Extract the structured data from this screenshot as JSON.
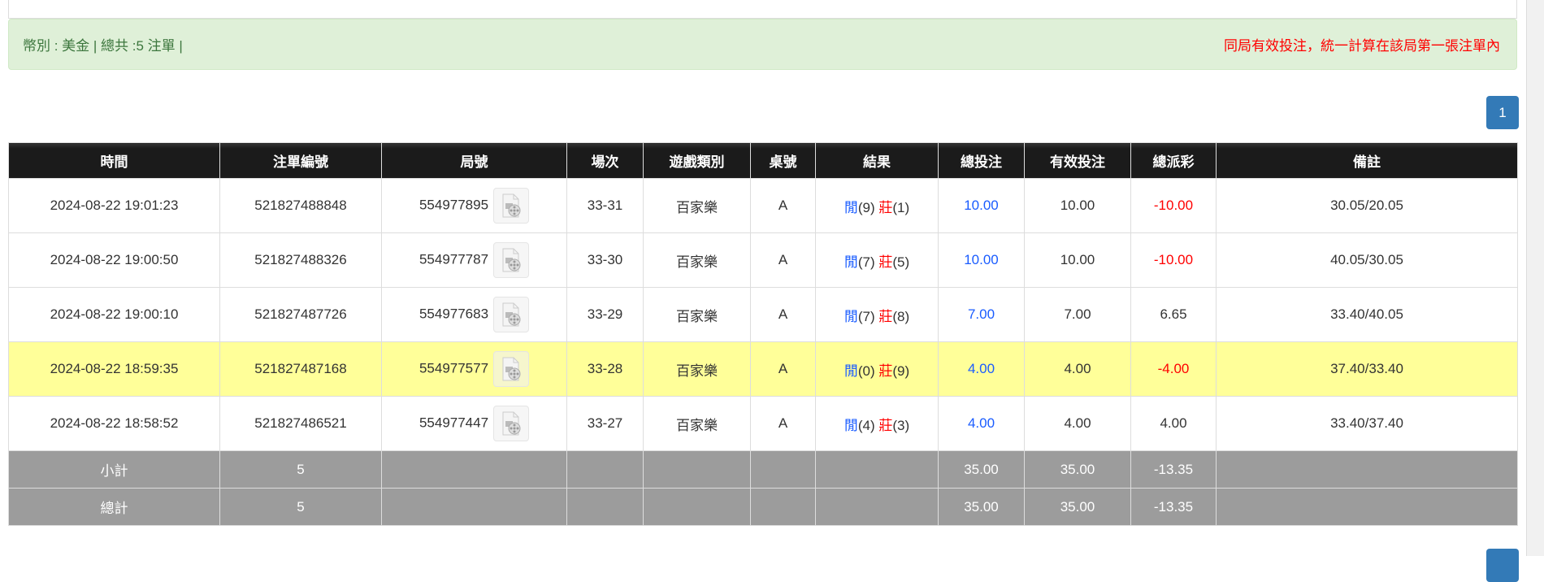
{
  "summary": {
    "left": "幣別 : 美金 | 總共 :5 注單 |",
    "right": "同局有效投注，統一計算在該局第一張注單內"
  },
  "pagination": {
    "current": "1"
  },
  "table": {
    "headers": [
      "時間",
      "注單編號",
      "局號",
      "場次",
      "遊戲類別",
      "桌號",
      "結果",
      "總投注",
      "有效投注",
      "總派彩",
      "備註"
    ],
    "rows": [
      {
        "time": "2024-08-22 19:01:23",
        "bet_id": "521827488848",
        "round": "554977895",
        "shoe": "33-31",
        "game": "百家樂",
        "table": "A",
        "player_label": "閒",
        "player": "(9)",
        "banker_label": "莊",
        "banker": "(1)",
        "total_bet": "10.00",
        "valid_bet": "10.00",
        "payout": "-10.00",
        "payout_negative": true,
        "note": "30.05/20.05",
        "highlight": false
      },
      {
        "time": "2024-08-22 19:00:50",
        "bet_id": "521827488326",
        "round": "554977787",
        "shoe": "33-30",
        "game": "百家樂",
        "table": "A",
        "player_label": "閒",
        "player": "(7)",
        "banker_label": "莊",
        "banker": "(5)",
        "total_bet": "10.00",
        "valid_bet": "10.00",
        "payout": "-10.00",
        "payout_negative": true,
        "note": "40.05/30.05",
        "highlight": false
      },
      {
        "time": "2024-08-22 19:00:10",
        "bet_id": "521827487726",
        "round": "554977683",
        "shoe": "33-29",
        "game": "百家樂",
        "table": "A",
        "player_label": "閒",
        "player": "(7)",
        "banker_label": "莊",
        "banker": "(8)",
        "total_bet": "7.00",
        "valid_bet": "7.00",
        "payout": "6.65",
        "payout_negative": false,
        "note": "33.40/40.05",
        "highlight": false
      },
      {
        "time": "2024-08-22 18:59:35",
        "bet_id": "521827487168",
        "round": "554977577",
        "shoe": "33-28",
        "game": "百家樂",
        "table": "A",
        "player_label": "閒",
        "player": "(0)",
        "banker_label": "莊",
        "banker": "(9)",
        "total_bet": "4.00",
        "valid_bet": "4.00",
        "payout": "-4.00",
        "payout_negative": true,
        "note": "37.40/33.40",
        "highlight": true
      },
      {
        "time": "2024-08-22 18:58:52",
        "bet_id": "521827486521",
        "round": "554977447",
        "shoe": "33-27",
        "game": "百家樂",
        "table": "A",
        "player_label": "閒",
        "player": "(4)",
        "banker_label": "莊",
        "banker": "(3)",
        "total_bet": "4.00",
        "valid_bet": "4.00",
        "payout": "4.00",
        "payout_negative": false,
        "note": "33.40/37.40",
        "highlight": false
      }
    ],
    "subtotal": {
      "label": "小計",
      "count": "5",
      "total_bet": "35.00",
      "valid_bet": "35.00",
      "payout": "-13.35"
    },
    "grand_total": {
      "label": "總計",
      "count": "5",
      "total_bet": "35.00",
      "valid_bet": "35.00",
      "payout": "-13.35"
    }
  },
  "icons": {
    "round_video": "video-file-icon"
  },
  "colors": {
    "header_bg": "#1b1b1b",
    "highlight_row": "#ffff99",
    "total_row": "#9c9c9c",
    "alert_bg": "#dff0d8",
    "pagination": "#337ab7",
    "negative": "#ff0000",
    "bet": "#1a5cff"
  }
}
